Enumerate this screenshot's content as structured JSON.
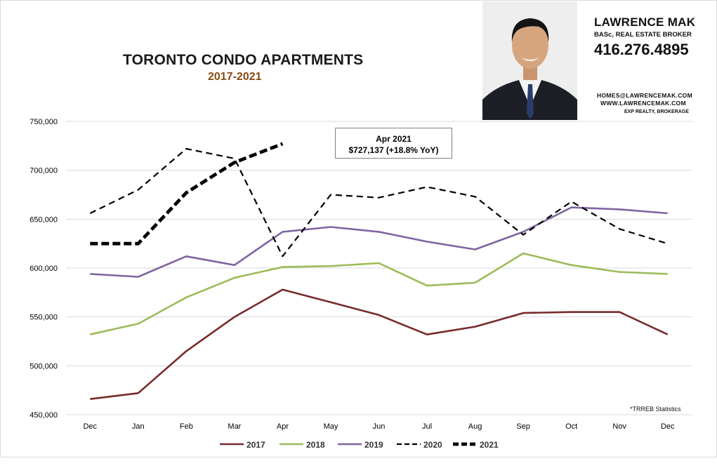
{
  "title": "TORONTO CONDO APARTMENTS",
  "subtitle": "2017-2021",
  "agent": {
    "name": "LAWRENCE MAK",
    "title": "BASc, REAL ESTATE BROKER",
    "phone": "416.276.4895",
    "email": "HOMES@LAWRENCEMAK.COM",
    "website": "WWW.LAWRENCEMAK.COM",
    "brokerage": "EXP REALTY, BROKERAGE"
  },
  "annotation": {
    "line1": "Apr 2021",
    "line2": "$727,137  (+18.8%  YoY)"
  },
  "source_note": "*TRREB Statistics",
  "colors": {
    "s2017": "#772a2a",
    "s2018": "#9bbb59",
    "s2019": "#8064a2",
    "s2020": "#000000",
    "s2021": "#000000",
    "grid": "#d9d9d9",
    "axis_text": "#000000"
  },
  "chart_data": {
    "type": "line",
    "categories": [
      "Dec",
      "Jan",
      "Feb",
      "Mar",
      "Apr",
      "May",
      "Jun",
      "Jul",
      "Aug",
      "Sep",
      "Oct",
      "Nov",
      "Dec"
    ],
    "ylim": [
      450000,
      750000
    ],
    "yticks": [
      450000,
      500000,
      550000,
      600000,
      650000,
      700000,
      750000
    ],
    "ytick_labels": [
      "450,000",
      "500,000",
      "550,000",
      "600,000",
      "650,000",
      "700,000",
      "750,000"
    ],
    "grid": true,
    "legend_position": "bottom",
    "series": [
      {
        "name": "2017",
        "style": "solid",
        "values": [
          466000,
          472000,
          515000,
          550000,
          578000,
          565000,
          552000,
          532000,
          540000,
          554000,
          555000,
          555000,
          532000
        ]
      },
      {
        "name": "2018",
        "style": "solid",
        "values": [
          532000,
          543000,
          570000,
          590000,
          601000,
          602000,
          605000,
          582000,
          585000,
          615000,
          603000,
          596000,
          594000
        ]
      },
      {
        "name": "2019",
        "style": "solid",
        "values": [
          594000,
          591000,
          612000,
          603000,
          637000,
          642000,
          637000,
          627000,
          619000,
          637000,
          662000,
          660000,
          656000
        ]
      },
      {
        "name": "2020",
        "style": "dashed",
        "values": [
          656000,
          680000,
          722000,
          712000,
          612000,
          675000,
          672000,
          683000,
          673000,
          634000,
          668000,
          640000,
          625000
        ]
      },
      {
        "name": "2021",
        "style": "bold-dashed",
        "values": [
          625000,
          625000,
          677000,
          708000,
          727137,
          null,
          null,
          null,
          null,
          null,
          null,
          null,
          null
        ]
      }
    ]
  }
}
